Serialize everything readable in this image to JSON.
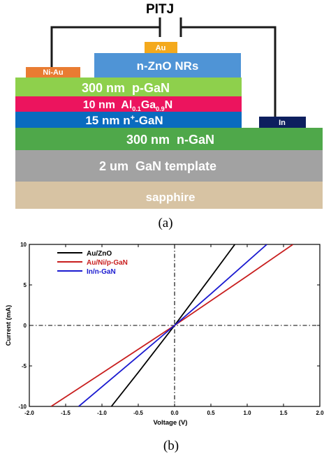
{
  "panel_a": {
    "circuit_label": "PITJ",
    "caption": "(a)",
    "layers": {
      "sapphire": "sapphire",
      "template": "2 um  GaN template",
      "n_gan": "300 nm  n-GaN",
      "n_plus": {
        "prefix": "15 nm n",
        "sup": "+",
        "suffix": "-GaN"
      },
      "algan": {
        "prefix": "10 nm  Al",
        "sub1": "0.1",
        "mid": "Ga",
        "sub2": "0.9",
        "suffix": "N"
      },
      "p_gan": "300 nm  p-GaN",
      "zno": "n-ZnO NRs"
    },
    "contacts": {
      "au": "Au",
      "ni_au": "Ni-Au",
      "in": "In"
    },
    "colors": {
      "sapphire": "#d7c3a3",
      "template": "#a2a2a2",
      "n_gan": "#4fa84a",
      "n_plus": "#0a6bbf",
      "algan": "#ec145e",
      "p_gan": "#8ed04c",
      "zno": "#4f94d6",
      "au": "#f4a91c",
      "ni_au": "#e97c32",
      "in": "#0d1f5e"
    }
  },
  "panel_b": {
    "caption": "(b)"
  },
  "chart_data": {
    "type": "line",
    "xlabel": "Voltage (V)",
    "ylabel": "Current (mA)",
    "xlim": [
      -2.0,
      2.0
    ],
    "ylim": [
      -10,
      10
    ],
    "xticks": [
      "-2.0",
      "-1.5",
      "-1.0",
      "-0.5",
      "0.0",
      "0.5",
      "1.0",
      "1.5",
      "2.0"
    ],
    "yticks": [
      "10",
      "5",
      "0",
      "-5",
      "-10"
    ],
    "legend_position": "top-left",
    "grid": false,
    "series": [
      {
        "name": "Au/ZnO",
        "color": "#000000",
        "x": [
          -0.87,
          -0.5,
          0,
          0.5,
          0.83
        ],
        "y": [
          -10,
          -5.8,
          0,
          6.0,
          10
        ]
      },
      {
        "name": "Au/Ni/p-GaN",
        "color": "#c81e1e",
        "x": [
          -1.7,
          -1.0,
          0,
          1.0,
          1.63
        ],
        "y": [
          -10,
          -5.9,
          0,
          6.1,
          10
        ]
      },
      {
        "name": "In/n-GaN",
        "color": "#1a1ad0",
        "x": [
          -1.32,
          -0.5,
          0,
          0.5,
          1.27
        ],
        "y": [
          -10,
          -3.8,
          0,
          3.9,
          10
        ]
      }
    ]
  }
}
